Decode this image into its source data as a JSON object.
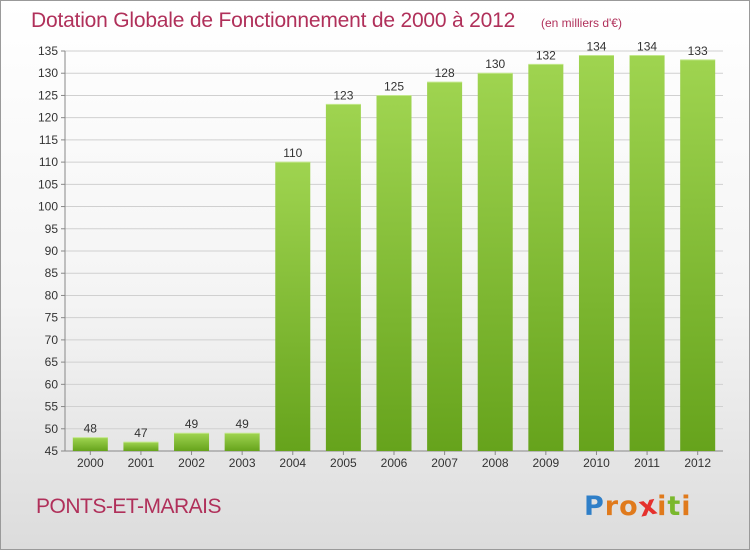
{
  "title": "Dotation Globale de Fonctionnement de 2000 à 2012",
  "unit": "(en milliers d'€)",
  "commune": "PONTS-ET-MARAIS",
  "logo": {
    "text": "Proxiti",
    "letters": [
      {
        "char": "P",
        "color": "#2f7fc8"
      },
      {
        "char": "r",
        "color": "#e07a1c"
      },
      {
        "char": "o",
        "color": "#e07a1c"
      },
      {
        "char": "x",
        "color": "#e5312d"
      },
      {
        "char": "i",
        "color": "#e07a1c"
      },
      {
        "char": "t",
        "color": "#7ab82d"
      },
      {
        "char": "i",
        "color": "#e07a1c"
      }
    ]
  },
  "colors": {
    "title": "#b0305a",
    "bar_light": "#9fd450",
    "bar_dark": "#66a31c",
    "grid": "#d0d0d0",
    "axis_text": "#333333"
  },
  "chart_data": {
    "type": "bar",
    "categories": [
      "2000",
      "2001",
      "2002",
      "2003",
      "2004",
      "2005",
      "2006",
      "2007",
      "2008",
      "2009",
      "2010",
      "2011",
      "2012"
    ],
    "values": [
      48,
      47,
      49,
      49,
      110,
      123,
      125,
      128,
      130,
      132,
      134,
      134,
      133
    ],
    "ylim": [
      45,
      135
    ],
    "yticks": [
      45,
      50,
      55,
      60,
      65,
      70,
      75,
      80,
      85,
      90,
      95,
      100,
      105,
      110,
      115,
      120,
      125,
      130,
      135
    ],
    "grid": true,
    "data_labels": true
  }
}
